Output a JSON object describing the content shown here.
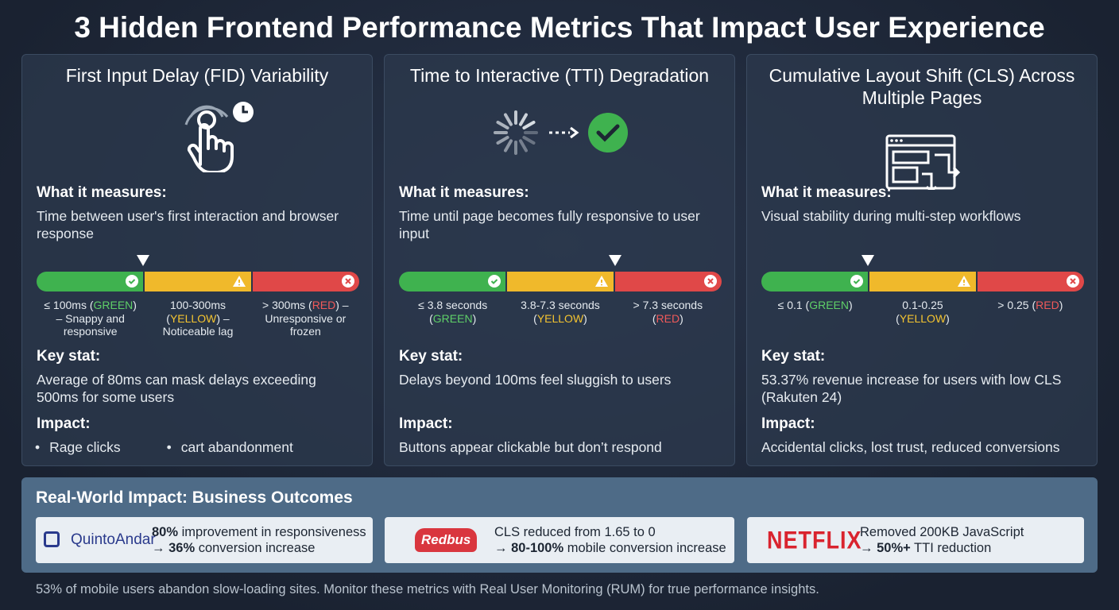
{
  "title": "3 Hidden Frontend Performance Metrics That Impact User Experience",
  "cards": [
    {
      "heading": "First Input Delay (FID) Variability",
      "measures_label": "What it measures:",
      "measures": "Time between user's first interaction and browser response",
      "scale": [
        [
          {
            "text": "≤ 100ms ("
          },
          {
            "text": "GREEN",
            "color": "#5fd068"
          },
          {
            "text": ") – Snappy and responsive"
          }
        ],
        [
          {
            "text": "100-300ms ("
          },
          {
            "text": "YELLOW",
            "color": "#f4c430"
          },
          {
            "text": ") – Noticeable lag"
          }
        ],
        [
          {
            "text": "> 300ms ("
          },
          {
            "text": "RED",
            "color": "#f05a5a"
          },
          {
            "text": ") – Unresponsive or frozen"
          }
        ]
      ],
      "stat_label": "Key stat:",
      "stat": "Average of 80ms can mask delays exceeding 500ms for some users",
      "impact_label": "Impact:",
      "impact": [
        "Rage clicks",
        "cart abandonment"
      ]
    },
    {
      "heading": "Time to Interactive (TTI) Degradation",
      "measures_label": "What it measures:",
      "measures": "Time until page becomes fully responsive to user input",
      "scale": [
        [
          {
            "text": "≤ 3.8 seconds ("
          },
          {
            "text": "GREEN",
            "color": "#5fd068"
          },
          {
            "text": ")"
          }
        ],
        [
          {
            "text": "3.8-7.3 seconds ("
          },
          {
            "text": "YELLOW",
            "color": "#f4c430"
          },
          {
            "text": ")"
          }
        ],
        [
          {
            "text": "> 7.3 seconds ("
          },
          {
            "text": "RED",
            "color": "#f05a5a"
          },
          {
            "text": ")"
          }
        ]
      ],
      "stat_label": "Key stat:",
      "stat": "Delays beyond 100ms feel sluggish to users",
      "impact_label": "Impact:",
      "impact": "Buttons appear clickable but don’t respond"
    },
    {
      "heading": "Cumulative Layout Shift (CLS) Across Multiple Pages",
      "measures_label": "What it measures:",
      "measures": "Visual stability during multi-step workflows",
      "scale": [
        [
          {
            "text": "≤ 0.1 ("
          },
          {
            "text": "GREEN",
            "color": "#5fd068"
          },
          {
            "text": ")"
          }
        ],
        [
          {
            "text": "0.1-0.25 ("
          },
          {
            "text": "YELLOW",
            "color": "#f4c430"
          },
          {
            "text": ")"
          }
        ],
        [
          {
            "text": "> 0.25 ("
          },
          {
            "text": "RED",
            "color": "#f05a5a"
          },
          {
            "text": ")"
          }
        ]
      ],
      "stat_label": "Key stat:",
      "stat": "53.37% revenue increase for users with low CLS (Rakuten 24)",
      "impact_label": "Impact:",
      "impact": "Accidental clicks, lost trust, reduced conversions"
    }
  ],
  "outcomes": {
    "heading": "Real-World Impact: Business Outcomes",
    "items": [
      {
        "logo": "QuintoAndar",
        "lines": [
          [
            {
              "text": "80%",
              "bold": true
            },
            {
              "text": " improvement in responsiveness"
            }
          ],
          [
            {
              "text": "→ "
            },
            {
              "text": "36%",
              "bold": true
            },
            {
              "text": " conversion increase"
            }
          ]
        ]
      },
      {
        "logo": "Redbus",
        "lines": [
          [
            {
              "text": "CLS reduced from 1.65 to 0"
            }
          ],
          [
            {
              "text": "→ "
            },
            {
              "text": "80-100%",
              "bold": true
            },
            {
              "text": " mobile conversion increase"
            }
          ]
        ]
      },
      {
        "logo": "NETFLIX",
        "lines": [
          [
            {
              "text": "Removed 200KB JavaScript"
            }
          ],
          [
            {
              "text": "→ "
            },
            {
              "text": "50%+",
              "bold": true
            },
            {
              "text": " TTI reduction"
            }
          ]
        ]
      }
    ]
  },
  "footer": "53% of mobile users abandon slow-loading sites. Monitor these metrics with Real User Monitoring (RUM) for true performance insights."
}
